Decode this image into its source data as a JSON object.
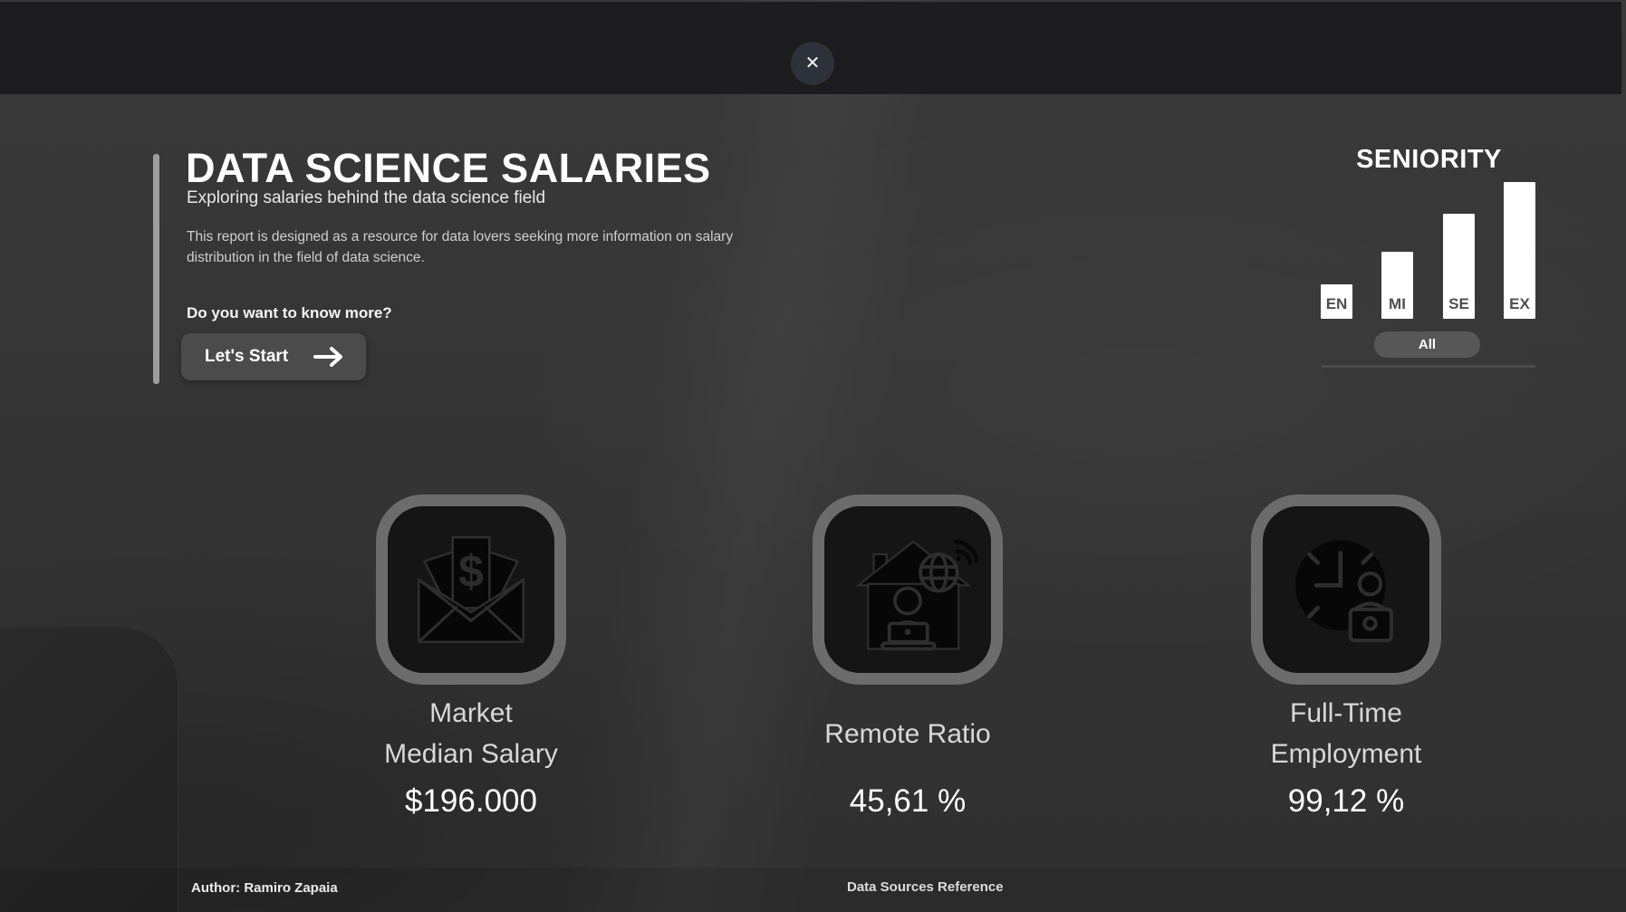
{
  "overlay": {
    "close_glyph": "✕"
  },
  "header": {
    "title": "DATA SCIENCE SALARIES",
    "subtitle": "Exploring salaries behind the data science field",
    "description_line1": "This report is designed as a resource for data lovers seeking more information on salary",
    "description_line2": "distribution in the field of data science.",
    "cta_question": "Do you want to know more?",
    "cta_button": "Let's Start"
  },
  "seniority": {
    "title": "SENIORITY",
    "all_label": "All",
    "chart_data": {
      "type": "bar",
      "categories": [
        "EN",
        "MI",
        "SE",
        "EX"
      ],
      "values": [
        38,
        74,
        116,
        151
      ],
      "title": "SENIORITY",
      "xlabel": "",
      "ylabel": "",
      "note": "slicer-style mini bar chart; no axis shown, values are relative bar heights in pixels",
      "bar_color": "#ffffff",
      "label_color": "#4f4f4f"
    }
  },
  "cards": [
    {
      "icon": "money-envelope-icon",
      "title_lines": [
        "Market",
        "Median Salary"
      ],
      "value": "$196.000"
    },
    {
      "icon": "remote-work-icon",
      "title_lines": [
        "Remote Ratio"
      ],
      "value": "45,61 %"
    },
    {
      "icon": "full-time-icon",
      "title_lines": [
        "Full-Time",
        "Employment"
      ],
      "value": "99,12 %"
    }
  ],
  "footer": {
    "author": "Author: Ramiro Zapaia",
    "data_sources": "Data Sources Reference"
  },
  "colors": {
    "page_background": "#353535",
    "topbar_background": "#1c1c1e",
    "close_button_background": "#2c313a",
    "accent_bar": "#9d9d9d",
    "button_background": "#4b4b4b",
    "bar_white": "#ffffff",
    "card_ring": "#6c6c6c",
    "title_text": "#ffffff",
    "body_text": "#cfcfcf"
  }
}
